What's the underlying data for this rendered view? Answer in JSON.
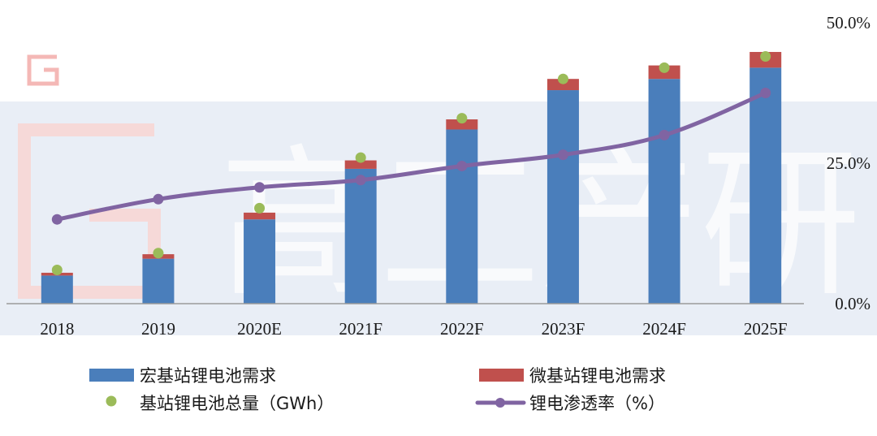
{
  "chart_data": {
    "type": "bar",
    "categories": [
      "2018",
      "2019",
      "2020E",
      "2021F",
      "2022F",
      "2023F",
      "2024F",
      "2025F"
    ],
    "series": [
      {
        "name": "宏基站锂电池需求",
        "kind": "bar",
        "values": [
          5,
          8,
          15,
          24,
          31,
          38,
          40,
          42
        ]
      },
      {
        "name": "微基站锂电池需求",
        "kind": "bar",
        "values": [
          0.5,
          0.8,
          1.2,
          1.5,
          1.8,
          2.0,
          2.4,
          2.8
        ]
      },
      {
        "name": "基站锂电池总量（GWh）",
        "kind": "scatter",
        "values": [
          6,
          9,
          17,
          26,
          33,
          40,
          42,
          44
        ]
      },
      {
        "name": "锂电渗透率（%）",
        "kind": "line",
        "axis": "right",
        "values": [
          15,
          18.6,
          20.7,
          22,
          24.5,
          26.5,
          30,
          37.5
        ]
      }
    ],
    "y2_ticks": [
      "0.0%",
      "25.0%",
      "50.0%"
    ],
    "y2lim": [
      0,
      50
    ],
    "ylim": [
      0,
      50
    ],
    "colors": {
      "macro": "#4a7ebb",
      "micro": "#c0504d",
      "total": "#9bbb59",
      "penetration": "#8064a2"
    },
    "legend_position": "bottom",
    "grid": false,
    "watermark": "高工产研"
  }
}
